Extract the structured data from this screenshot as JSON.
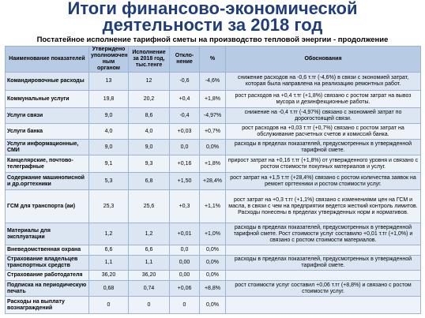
{
  "title": {
    "line1": "Итоги финансово-экономической",
    "line2": "деятельности за 2018 год"
  },
  "subtitle": "Постатейное исполнение тарифной сметы на производство тепловой энергии - продолжение",
  "table": {
    "headers": [
      "Наименование показателей",
      "Утверждено уполномочен-ным органом",
      "Исполнение за 2018 год, тыс.тенге",
      "Откло-нение",
      "%",
      "Обоснования"
    ],
    "rows": [
      {
        "name": "Командировочные расходы",
        "approved": "13",
        "actual": "12",
        "deviation": "-0,6",
        "percent": "-4,6%",
        "basis": "снижение расходов на -0,6 т.тг (-4,6%) в связи с экономией затрат, которая была направлена на реализацию ремонтных работ."
      },
      {
        "name": "Коммунальные услуги",
        "approved": "19,8",
        "actual": "20,2",
        "deviation": "+0,4",
        "percent": "+1,8%",
        "basis": "рост расходов на +0,4 т.тг (+1,8%) связано с ростом затрат на вывоз мусора и дезинфекционные работы."
      },
      {
        "name": "Услуги связи",
        "approved": "9,0",
        "actual": "8,6",
        "deviation": "-0,4",
        "percent": "-4,97%",
        "basis": "снижение на -0,4 т.тг (-4,97%) связано с экономией затрат по дорогостоящей связи."
      },
      {
        "name": "Услуги банка",
        "approved": "4,0",
        "actual": "4,0",
        "deviation": "+0,03",
        "percent": "+0,7%",
        "basis": "рост расходов на +0,03 т.тг (+0,7%) связано с ростом затрат на обслуживание расчетных счетов и комиссий банка."
      },
      {
        "name": "Услуги информационные, СМИ",
        "approved": "9,0",
        "actual": "9,0",
        "deviation": "0,0",
        "percent": "0,0%",
        "basis": "расходы в пределах показателей, предусмотренных в утвержденной тарифной смете."
      },
      {
        "name": "Канцелярские, почтово-телеграфные",
        "approved": "9,1",
        "actual": "9,3",
        "deviation": "+0,16",
        "percent": "+1,8%",
        "basis": "прирост затрат на +0,16 т.тг (+1,8%) от утвержденного уровня и связано с ростом стоимости покупных материалов и услуг."
      },
      {
        "name": "Содержание машинописной и др.оргтехники",
        "approved": "5,3",
        "actual": "6,8",
        "deviation": "+1,50",
        "percent": "+28,4%",
        "basis": "рост затрат на +1,5 т.тг (+28,4%) связано с ростом количества заявок на ремонт оргтехники и ростом стоимости услуг."
      },
      {
        "name": "ГСМ для транспорта (аи)",
        "approved": "25,3",
        "actual": "25,6",
        "deviation": "+0,3",
        "percent": "+1,1%",
        "basis": "рост затрат на +0,3 т.тг (+1,1%) связано с изменениями цен на ГСМ и масла, в связи с чем на предприятии ведется жесткий контроль лимитов. Расходы понесены в пределах утвержденных норм и нормативов."
      },
      {
        "name": "Материалы для эксплуатации",
        "approved": "1,2",
        "actual": "1,2",
        "deviation": "+0,01",
        "percent": "+1,0%",
        "basis": "расходы в пределах показателей, предусмотренных в утвержденной тарифной смете. Рост стоимости услуг составило +0,01 т.тг (+1,0%) и связано с ростом стоимости материалов."
      },
      {
        "name": "Вневедомственная охрана",
        "approved": "6,6",
        "actual": "6,6",
        "deviation": "0,0",
        "percent": "0,0%",
        "basis": ""
      },
      {
        "name": "Страхование владельцев транспортных средств",
        "approved": "1,1",
        "actual": "1,1",
        "deviation": "0,00",
        "percent": "0,0%",
        "basis": "расходы в пределах показателей, предусмотренных в утвержденной тарифной смете."
      },
      {
        "name": "Страхование работодателя",
        "approved": "36,20",
        "actual": "36,20",
        "deviation": "0,00",
        "percent": "0,0%",
        "basis": ""
      },
      {
        "name": "Подписка на периодическую печать",
        "approved": "0,68",
        "actual": "0,74",
        "deviation": "+0,06",
        "percent": "+8,8%",
        "basis": "рост стоимости услуг составил +0,06 т.тг (+8,8%) и связано с ростом стоимости услуг."
      },
      {
        "name": "Расходы на выплату вознаграждений",
        "approved": "0",
        "actual": "0",
        "deviation": "0",
        "percent": "0,0%",
        "basis": ""
      }
    ]
  }
}
